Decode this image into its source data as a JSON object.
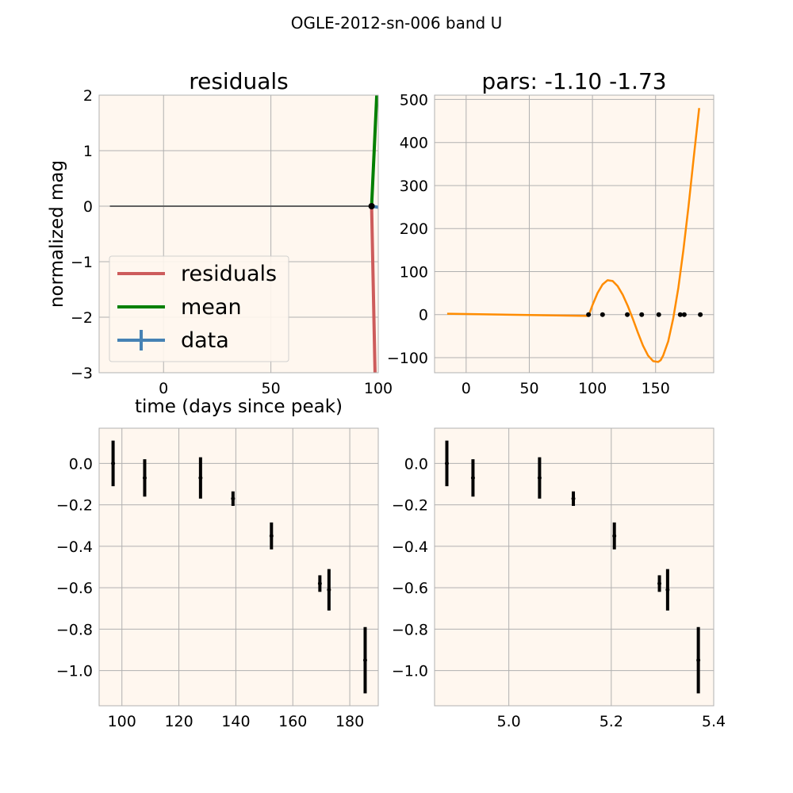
{
  "figure": {
    "suptitle": "OGLE-2012-sn-006 band U"
  },
  "colors": {
    "axes_bg": "#fff7ef",
    "grid": "#b0b0b0",
    "spine": "#b0b0b0",
    "residuals": "#cd5c5c",
    "mean": "#008000",
    "data": "#4682b4",
    "zero_line": "#606060",
    "model": "#ff8c00",
    "points": "#000000"
  },
  "chart_data": [
    {
      "id": "residuals",
      "type": "line",
      "title": "residuals",
      "xlabel": "time (days since peak)",
      "ylabel": "normalized mag",
      "xlim": [
        -30,
        100
      ],
      "ylim": [
        -3,
        2
      ],
      "xticks": [
        0,
        50,
        100
      ],
      "xtick_labels": [
        "0",
        "50",
        "100"
      ],
      "yticks": [
        -3,
        -2,
        -1,
        0,
        1,
        2
      ],
      "ytick_labels": [
        "−3",
        "−2",
        "−1",
        "0",
        "1",
        "2"
      ],
      "grid": true,
      "legend": {
        "placement": "lower-left",
        "entries": [
          "residuals",
          "mean",
          "data"
        ]
      },
      "series": [
        {
          "name": "residuals",
          "x": [
            96.9,
            98.5
          ],
          "y": [
            0,
            -3
          ]
        },
        {
          "name": "mean",
          "x": [
            96.9,
            99.3
          ],
          "y": [
            0,
            2
          ]
        },
        {
          "name": "data",
          "x": [
            96.9,
            100
          ],
          "y": [
            0,
            -0.02
          ]
        }
      ],
      "zero_line": {
        "x": [
          -25,
          96.9
        ],
        "y": [
          0,
          0
        ]
      },
      "data_point": {
        "x": 96.9,
        "y": 0
      }
    },
    {
      "id": "model",
      "type": "line",
      "title": "pars: -1.10 -1.73",
      "xlim": [
        -25,
        196
      ],
      "ylim": [
        -135,
        510
      ],
      "xticks": [
        0,
        50,
        100,
        150
      ],
      "xtick_labels": [
        "0",
        "50",
        "100",
        "150"
      ],
      "yticks": [
        -100,
        0,
        100,
        200,
        300,
        400,
        500
      ],
      "ytick_labels": [
        "−100",
        "0",
        "100",
        "200",
        "300",
        "400",
        "500"
      ],
      "grid": true,
      "series": [
        {
          "name": "model",
          "x": [
            -15,
            96.9,
            100,
            104,
            108,
            112,
            116,
            120,
            124,
            128,
            132,
            136,
            140,
            144,
            148,
            152,
            154,
            156,
            160,
            164,
            168,
            172,
            176,
            180,
            184.5
          ],
          "y": [
            2,
            -3,
            22,
            50,
            70,
            80,
            78,
            66,
            46,
            20,
            -10,
            -42,
            -72,
            -95,
            -108,
            -110,
            -106,
            -95,
            -62,
            -8,
            62,
            150,
            250,
            360,
            480
          ]
        }
      ],
      "points": {
        "x": [
          96.9,
          108,
          127.6,
          139,
          152.5,
          169.5,
          172.7,
          185.4
        ],
        "y": [
          0,
          0,
          0,
          0,
          0,
          0,
          0,
          0
        ]
      }
    },
    {
      "id": "time-data",
      "type": "scatter",
      "xlim": [
        92,
        190
      ],
      "ylim": [
        -1.17,
        0.17
      ],
      "xticks": [
        100,
        120,
        140,
        160,
        180
      ],
      "xtick_labels": [
        "100",
        "120",
        "140",
        "160",
        "180"
      ],
      "yticks": [
        -1.0,
        -0.8,
        -0.6,
        -0.4,
        -0.2,
        0.0
      ],
      "ytick_labels": [
        "−1.0",
        "−0.8",
        "−0.6",
        "−0.4",
        "−0.2",
        "0.0"
      ],
      "grid": true,
      "points": {
        "x": [
          96.9,
          108,
          127.6,
          139,
          152.5,
          169.5,
          172.7,
          185.4
        ],
        "y": [
          0.0,
          -0.07,
          -0.07,
          -0.17,
          -0.35,
          -0.58,
          -0.61,
          -0.95
        ],
        "err": [
          0.11,
          0.09,
          0.1,
          0.035,
          0.065,
          0.04,
          0.1,
          0.16
        ]
      }
    },
    {
      "id": "logtime-data",
      "type": "scatter",
      "xlim": [
        4.855,
        5.4
      ],
      "ylim": [
        -1.17,
        0.17
      ],
      "xticks": [
        5.0,
        5.2,
        5.4
      ],
      "xtick_labels": [
        "5.0",
        "5.2",
        "5.4"
      ],
      "yticks": [
        -1.0,
        -0.8,
        -0.6,
        -0.4,
        -0.2,
        0.0
      ],
      "ytick_labels": [
        "−1.0",
        "−0.8",
        "−0.6",
        "−0.4",
        "−0.2",
        "0.0"
      ],
      "grid": true,
      "points": {
        "x": [
          4.879,
          4.93,
          5.06,
          5.126,
          5.206,
          5.294,
          5.31,
          5.37
        ],
        "y": [
          0.0,
          -0.07,
          -0.07,
          -0.17,
          -0.35,
          -0.58,
          -0.61,
          -0.95
        ],
        "err": [
          0.11,
          0.09,
          0.1,
          0.035,
          0.065,
          0.04,
          0.1,
          0.16
        ]
      }
    }
  ]
}
